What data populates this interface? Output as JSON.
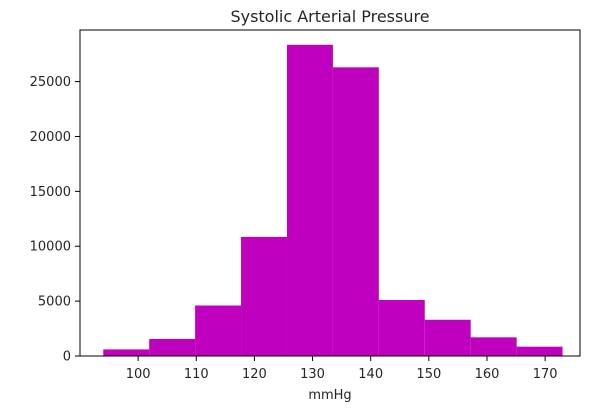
{
  "chart_data": {
    "type": "bar",
    "subtype": "histogram",
    "title": "Systolic Arterial Pressure",
    "xlabel": "mmHg",
    "ylabel": "",
    "xlim": [
      90,
      176
    ],
    "ylim": [
      0,
      29700
    ],
    "bin_edges": [
      94,
      101.9,
      109.8,
      117.7,
      125.6,
      133.5,
      141.4,
      149.3,
      157.2,
      165.1,
      173
    ],
    "values": [
      600,
      1550,
      4600,
      10850,
      28350,
      26300,
      5100,
      3300,
      1700,
      850
    ],
    "x_ticks": [
      100,
      110,
      120,
      130,
      140,
      150,
      160,
      170
    ],
    "y_ticks": [
      0,
      5000,
      10000,
      15000,
      20000,
      25000
    ],
    "bar_color": "#bf00bf",
    "grid": false,
    "legend": "none"
  }
}
